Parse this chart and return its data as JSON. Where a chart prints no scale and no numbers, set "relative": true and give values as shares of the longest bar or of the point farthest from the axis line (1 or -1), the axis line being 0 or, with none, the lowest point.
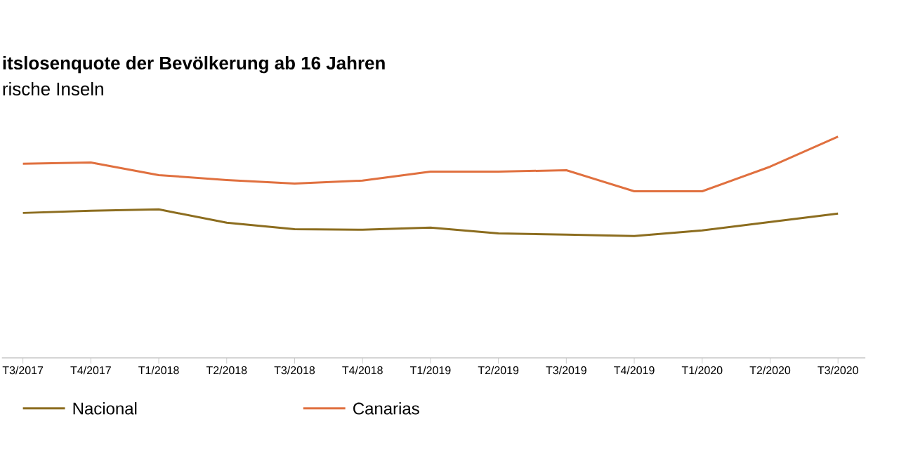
{
  "chart_data": {
    "type": "line",
    "title": "itslosenquote der Bevölkerung ab 16 Jahren",
    "subtitle": "rische Inseln",
    "categories": [
      "T3/2017",
      "T4/2017",
      "T1/2018",
      "T2/2018",
      "T3/2018",
      "T4/2018",
      "T1/2019",
      "T2/2019",
      "T3/2019",
      "T4/2019",
      "T1/2020",
      "T2/2020",
      "T3/2020"
    ],
    "relative": true,
    "legend": "bottom",
    "series": [
      {
        "name": "Nacional",
        "color": "#8c6d1f",
        "values": [
          0.655,
          0.665,
          0.671,
          0.611,
          0.582,
          0.579,
          0.589,
          0.563,
          0.557,
          0.551,
          0.576,
          0.614,
          0.652
        ]
      },
      {
        "name": "Canarias",
        "color": "#e0703f",
        "values": [
          0.877,
          0.883,
          0.826,
          0.804,
          0.788,
          0.801,
          0.842,
          0.842,
          0.848,
          0.753,
          0.753,
          0.864,
          1
        ]
      }
    ]
  }
}
